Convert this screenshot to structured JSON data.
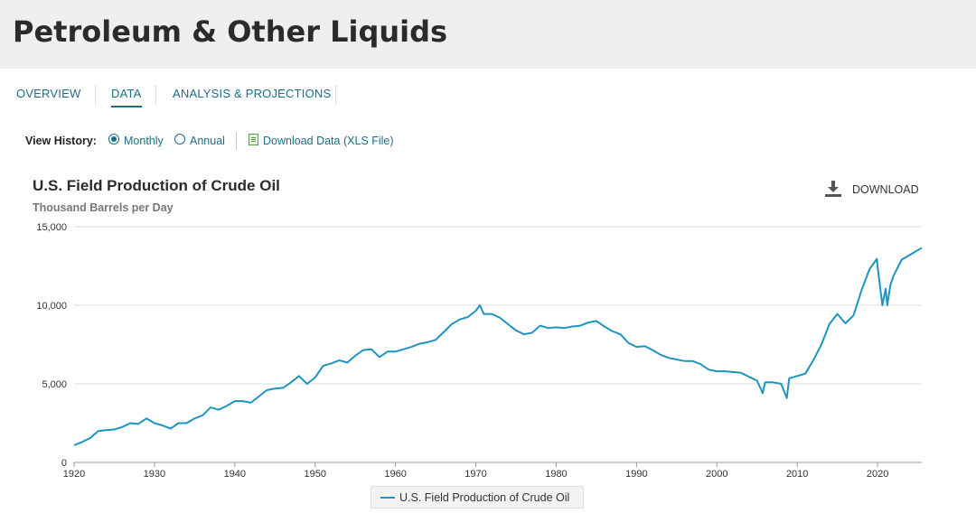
{
  "header": {
    "title": "Petroleum & Other Liquids"
  },
  "tabs": [
    {
      "label": "OVERVIEW"
    },
    {
      "label": "DATA"
    },
    {
      "label": "ANALYSIS & PROJECTIONS"
    }
  ],
  "view_history": {
    "label": "View History:",
    "options": [
      "Monthly",
      "Annual"
    ],
    "selected": "Monthly",
    "download_link": "Download Data (XLS File)"
  },
  "chart_header": {
    "download_label": "DOWNLOAD"
  },
  "icons": [
    "download-icon",
    "xls-file-icon"
  ],
  "colors": {
    "accent": "#1a6f85",
    "series": "#1f94c0",
    "grid": "#dddddd"
  },
  "chart_data": {
    "type": "line",
    "title": "U.S. Field Production of Crude Oil",
    "ylabel": "Thousand Barrels per Day",
    "xlabel": "",
    "xlim": [
      1920,
      2025.5
    ],
    "ylim": [
      0,
      15000
    ],
    "y_ticks": [
      0,
      5000,
      10000,
      15000
    ],
    "y_tick_labels": [
      "0",
      "5,000",
      "10,000",
      "15,000"
    ],
    "x_ticks": [
      1920,
      1930,
      1940,
      1950,
      1960,
      1970,
      1980,
      1990,
      2000,
      2010,
      2020
    ],
    "legend": "top-center below axis",
    "series": [
      {
        "name": "U.S. Field Production of Crude Oil",
        "x": [
          1920,
          1921,
          1922,
          1923,
          1924,
          1925,
          1926,
          1927,
          1928,
          1929,
          1930,
          1931,
          1932,
          1933,
          1934,
          1935,
          1936,
          1937,
          1938,
          1939,
          1940,
          1941,
          1942,
          1943,
          1944,
          1945,
          1946,
          1947,
          1948,
          1949,
          1950,
          1951,
          1952,
          1953,
          1954,
          1955,
          1956,
          1957,
          1958,
          1959,
          1960,
          1961,
          1962,
          1963,
          1964,
          1965,
          1966,
          1967,
          1968,
          1969,
          1970,
          1970.5,
          1971,
          1972,
          1973,
          1974,
          1975,
          1976,
          1977,
          1978,
          1979,
          1980,
          1981,
          1982,
          1983,
          1984,
          1985,
          1986,
          1987,
          1988,
          1989,
          1990,
          1991,
          1992,
          1993,
          1994,
          1995,
          1996,
          1997,
          1998,
          1999,
          2000,
          2001,
          2002,
          2003,
          2004,
          2005,
          2005.7,
          2006,
          2007,
          2008,
          2008.7,
          2009,
          2010,
          2011,
          2012,
          2013,
          2014,
          2015,
          2016,
          2017,
          2018,
          2019,
          2019.9,
          2020.3,
          2020.6,
          2021,
          2021.2,
          2021.6,
          2022,
          2023,
          2024,
          2025.5
        ],
        "values": [
          1100,
          1300,
          1550,
          2000,
          2050,
          2100,
          2250,
          2500,
          2450,
          2800,
          2500,
          2350,
          2150,
          2500,
          2500,
          2800,
          3000,
          3500,
          3350,
          3600,
          3900,
          3900,
          3800,
          4200,
          4600,
          4700,
          4750,
          5100,
          5500,
          5000,
          5400,
          6150,
          6300,
          6500,
          6350,
          6800,
          7150,
          7200,
          6700,
          7050,
          7050,
          7200,
          7350,
          7550,
          7650,
          7800,
          8300,
          8800,
          9100,
          9250,
          9650,
          10000,
          9450,
          9450,
          9200,
          8800,
          8400,
          8150,
          8250,
          8700,
          8550,
          8600,
          8550,
          8650,
          8700,
          8900,
          9000,
          8650,
          8350,
          8150,
          7600,
          7350,
          7400,
          7150,
          6850,
          6650,
          6550,
          6450,
          6450,
          6250,
          5900,
          5800,
          5800,
          5750,
          5700,
          5450,
          5200,
          4400,
          5100,
          5100,
          5000,
          4100,
          5350,
          5500,
          5650,
          6500,
          7500,
          8800,
          9450,
          8850,
          9350,
          10950,
          12300,
          12950,
          11200,
          10000,
          11050,
          10000,
          11300,
          11900,
          12900,
          13200,
          13650
        ]
      }
    ]
  }
}
